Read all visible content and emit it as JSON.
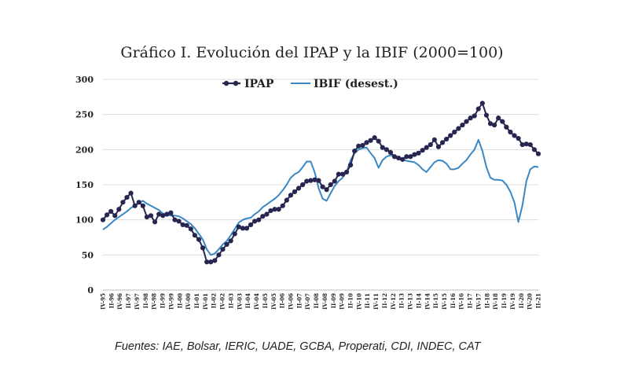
{
  "title": "Gráfico I. Evolución del IPAP y la IBIF (2000=100)",
  "source": "Fuentes: IAE, Bolsar, IERIC, UADE, GCBA, Properati, CDI, INDEC, CAT",
  "colors": {
    "ipap": "#262650",
    "ibif": "#3a87c4",
    "grid": "#dcdcdc"
  },
  "chart_data": {
    "type": "line",
    "ylim": [
      0,
      300
    ],
    "yticks": [
      0,
      50,
      100,
      150,
      200,
      250,
      300
    ],
    "x_tick_labels": [
      "IV-95",
      "II-96",
      "IV-96",
      "II-97",
      "IV-97",
      "II-98",
      "IV-98",
      "II-99",
      "IV-99",
      "II-00",
      "IV-00",
      "II-01",
      "IV-01",
      "II-02",
      "IV-02",
      "II-03",
      "IV-03",
      "II-04",
      "IV-04",
      "II-05",
      "IV-05",
      "II-06",
      "IV-06",
      "II-07",
      "IV-07",
      "II-08",
      "IV-08",
      "II-09",
      "IV-09",
      "II-10",
      "IV-10",
      "II-11",
      "IV-11",
      "II-12",
      "IV-12",
      "II-13",
      "IV-13",
      "II-14",
      "IV-14",
      "II-15",
      "IV-15",
      "II-16",
      "IV-16",
      "II-17",
      "IV-17",
      "II-18",
      "IV-18",
      "II-19",
      "IV-19",
      "II-20",
      "IV-20",
      "II-21"
    ],
    "series": [
      {
        "name": "IPAP",
        "values": [
          100,
          107,
          112,
          106,
          115,
          125,
          132,
          138,
          120,
          125,
          120,
          104,
          106,
          97,
          108,
          106,
          108,
          110,
          100,
          98,
          93,
          92,
          87,
          78,
          72,
          60,
          40,
          40,
          42,
          50,
          58,
          65,
          70,
          80,
          90,
          88,
          88,
          93,
          98,
          100,
          105,
          108,
          113,
          115,
          115,
          120,
          128,
          135,
          140,
          145,
          150,
          155,
          156,
          157,
          156,
          147,
          143,
          150,
          155,
          165,
          165,
          168,
          178,
          198,
          205,
          206,
          210,
          213,
          217,
          212,
          203,
          200,
          196,
          190,
          188,
          186,
          190,
          190,
          193,
          195,
          199,
          203,
          207,
          214,
          204,
          210,
          215,
          220,
          225,
          230,
          235,
          240,
          245,
          248,
          258,
          266,
          249,
          237,
          235,
          245,
          240,
          232,
          225,
          220,
          216,
          207,
          208,
          207,
          200,
          194
        ]
      },
      {
        "name": "IBIF (desest.)",
        "values": [
          86,
          90,
          95,
          100,
          104,
          108,
          112,
          117,
          120,
          124,
          127,
          123,
          120,
          117,
          114,
          109,
          107,
          106,
          106,
          105,
          102,
          98,
          94,
          88,
          80,
          72,
          58,
          50,
          52,
          58,
          65,
          70,
          78,
          87,
          96,
          100,
          102,
          103,
          108,
          112,
          118,
          122,
          126,
          130,
          135,
          142,
          150,
          160,
          165,
          168,
          175,
          183,
          183,
          168,
          145,
          130,
          127,
          138,
          148,
          155,
          160,
          168,
          185,
          195,
          200,
          202,
          203,
          195,
          188,
          174,
          185,
          190,
          192,
          190,
          188,
          186,
          184,
          183,
          182,
          178,
          172,
          168,
          175,
          182,
          185,
          184,
          180,
          172,
          172,
          174,
          180,
          185,
          193,
          200,
          214,
          198,
          175,
          160,
          157,
          157,
          156,
          150,
          140,
          125,
          97,
          120,
          155,
          172,
          176,
          175
        ]
      }
    ]
  }
}
